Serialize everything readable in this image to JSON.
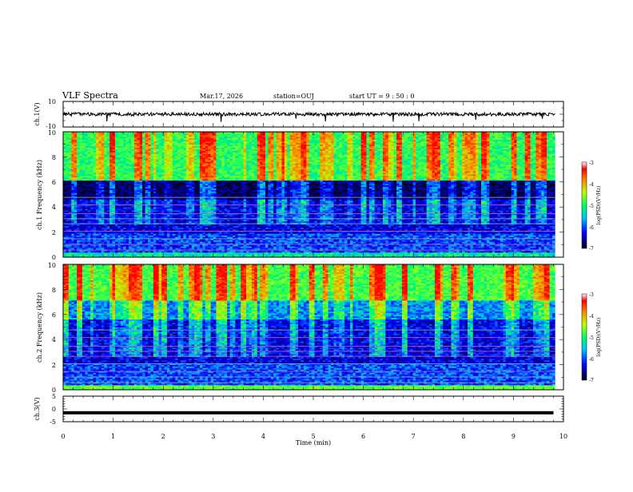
{
  "header": {
    "title": "VLF Spectra",
    "date": "Mar.17, 2026",
    "station": "station=OUJ",
    "start": "start UT =  9 : 50 : 0"
  },
  "chart_data": [
    {
      "type": "line",
      "panel": "ch1-waveform",
      "ylabel": "ch.1(V)",
      "ylim": [
        -10,
        10
      ],
      "yticks": [
        "10",
        "-10"
      ],
      "xlim": [
        0,
        10
      ],
      "series": [
        {
          "level": 0,
          "noise_amplitude": 1.3
        }
      ]
    },
    {
      "type": "heatmap",
      "panel": "ch1-spectrogram",
      "ylabel": "ch.1 Frequency (kHz)",
      "ylim": [
        0,
        10
      ],
      "yticks": [
        "0",
        "2",
        "4",
        "6",
        "8",
        "10"
      ],
      "xlim": [
        0,
        9.83
      ],
      "colorbar": {
        "label": "log(PSD)(V²/Hz)",
        "range": [
          -7,
          -3
        ],
        "ticks": [
          "-3",
          "-4",
          "-5",
          "-6",
          "-7"
        ]
      }
    },
    {
      "type": "heatmap",
      "panel": "ch2-spectrogram",
      "ylabel": "ch.2 Frequency (kHz)",
      "ylim": [
        0,
        10
      ],
      "yticks": [
        "0",
        "2",
        "4",
        "6",
        "8",
        "10"
      ],
      "xlim": [
        0,
        9.83
      ],
      "colorbar": {
        "label": "log(PSD)(V²/Hz)",
        "range": [
          -7,
          -3
        ],
        "ticks": [
          "-3",
          "-4",
          "-5",
          "-6",
          "-7"
        ]
      }
    },
    {
      "type": "line",
      "panel": "ch3-waveform",
      "ylabel": "ch.3(V)",
      "ylim": [
        -5,
        5
      ],
      "yticks": [
        "5",
        "0",
        "-5"
      ],
      "xlim": [
        0,
        10
      ],
      "series": [
        {
          "level": -1.5
        }
      ]
    }
  ],
  "xaxis": {
    "label": "Time (min)",
    "range": [
      0,
      10
    ],
    "ticks": [
      "0",
      "1",
      "2",
      "3",
      "4",
      "5",
      "6",
      "7",
      "8",
      "9",
      "10"
    ]
  }
}
